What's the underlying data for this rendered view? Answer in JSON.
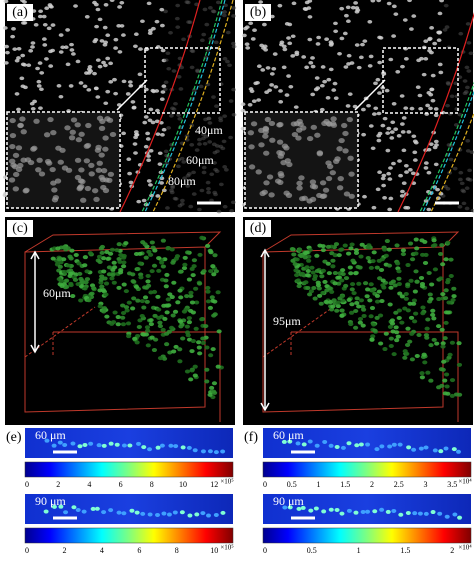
{
  "panels": [
    {
      "label": "(a)",
      "annotations": [
        "40μm",
        "60μm",
        "80μm"
      ]
    },
    {
      "label": "(b)"
    },
    {
      "label": "(c)",
      "annotations": [
        "60μm"
      ]
    },
    {
      "label": "(d)",
      "annotations": [
        "95μm"
      ]
    },
    {
      "label": "(e)",
      "strips": [
        {
          "label": "60 μm",
          "ticks": [
            "0",
            "2",
            "4",
            "6",
            "8",
            "10",
            "12"
          ],
          "exponent": "×10⁵"
        },
        {
          "label": "90 μm",
          "ticks": [
            "0",
            "2",
            "4",
            "6",
            "8",
            "10"
          ],
          "exponent": "×10⁵"
        }
      ]
    },
    {
      "label": "(f)",
      "strips": [
        {
          "label": "60 μm",
          "ticks": [
            "0",
            "0.5",
            "1",
            "1.5",
            "2",
            "2.5",
            "3",
            "3.5"
          ],
          "exponent": "×10⁴"
        },
        {
          "label": "90 μm",
          "ticks": [
            "0",
            "0.5",
            "1",
            "1.5",
            "2"
          ],
          "exponent": "×10⁴"
        }
      ]
    }
  ]
}
